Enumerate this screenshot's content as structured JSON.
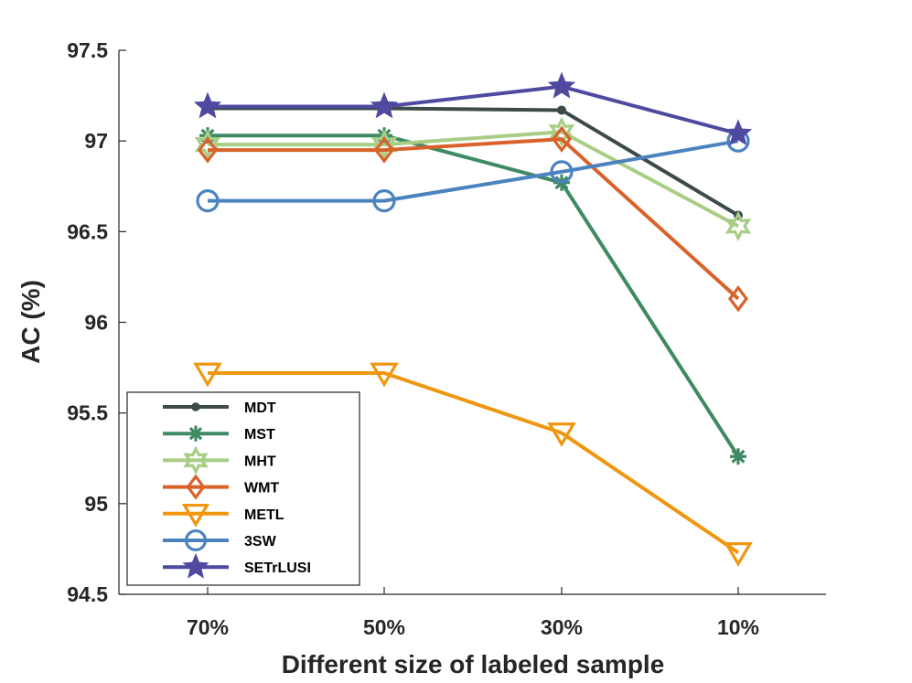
{
  "chart_data": {
    "type": "line",
    "title": "",
    "xlabel": "Different size of labeled sample",
    "ylabel": "AC (%)",
    "categories": [
      "70%",
      "50%",
      "30%",
      "10%"
    ],
    "ylim": [
      94.5,
      97.5
    ],
    "yticks": [
      "94.5",
      "95",
      "95.5",
      "96",
      "96.5",
      "97",
      "97.5"
    ],
    "grid": false,
    "legend_position": "bottom-left",
    "series": [
      {
        "name": "MDT",
        "color": "#3d4a4a",
        "marker": "dot",
        "values": [
          97.18,
          97.18,
          97.17,
          96.59
        ]
      },
      {
        "name": "MST",
        "color": "#3e8a63",
        "marker": "asterisk",
        "values": [
          97.03,
          97.03,
          96.77,
          95.26
        ]
      },
      {
        "name": "MHT",
        "color": "#a8cd84",
        "marker": "hexagram",
        "values": [
          96.98,
          96.98,
          97.05,
          96.53
        ]
      },
      {
        "name": "WMT",
        "color": "#d9622b",
        "marker": "diamond",
        "values": [
          96.95,
          96.95,
          97.01,
          96.13
        ]
      },
      {
        "name": "METL",
        "color": "#f0960f",
        "marker": "triangle",
        "values": [
          95.72,
          95.72,
          95.39,
          94.73
        ]
      },
      {
        "name": "3SW",
        "color": "#4b83bf",
        "marker": "circle",
        "values": [
          96.67,
          96.67,
          96.83,
          97.0
        ]
      },
      {
        "name": "SETrLUSI",
        "color": "#4f4aa0",
        "marker": "star",
        "values": [
          97.19,
          97.19,
          97.3,
          97.04
        ]
      }
    ]
  }
}
